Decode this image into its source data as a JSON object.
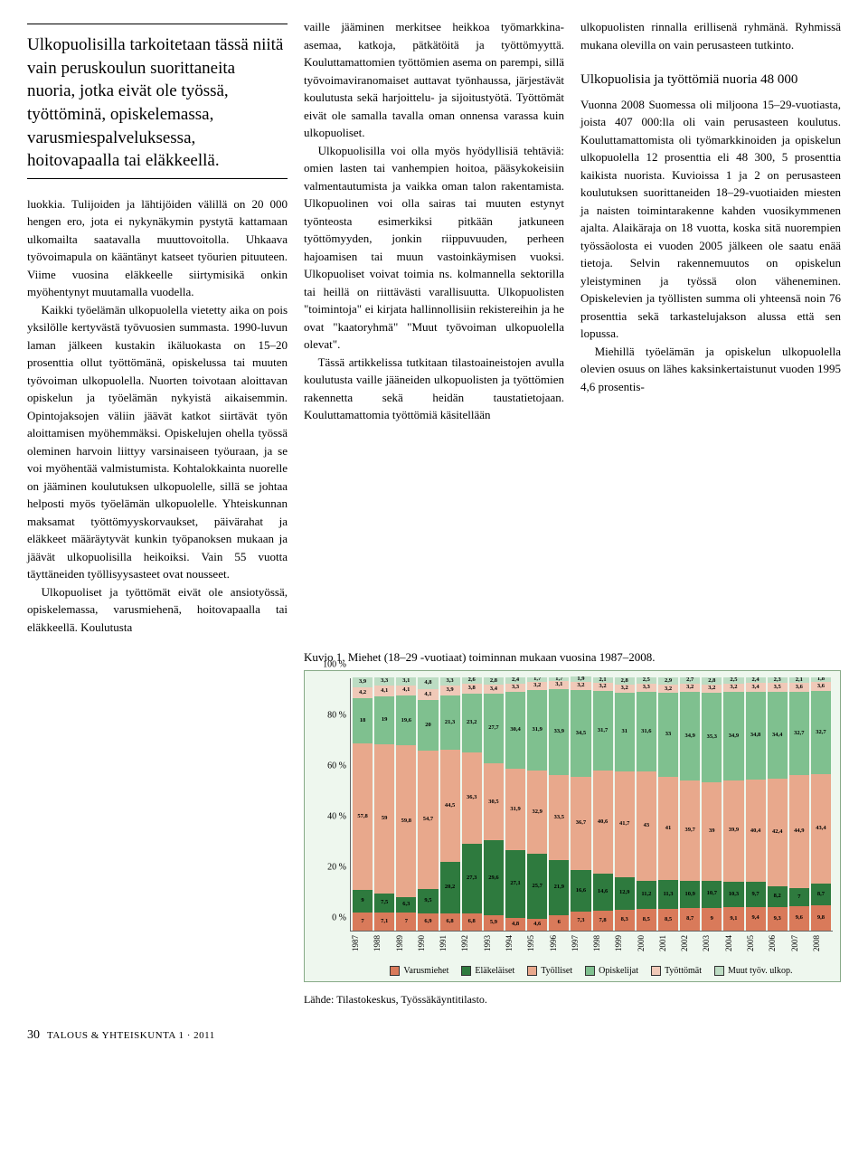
{
  "pullquote": "Ulkopuolisilla tarkoitetaan tässä niitä vain peruskoulun suorittaneita nuoria, jotka eivät ole työssä, työttöminä, opiskelemassa, varusmiespalveluksessa, hoitovapaalla tai eläkkeellä.",
  "col1": {
    "p1": "luokkia. Tulijoiden ja lähtijöiden välillä on 20 000 hengen ero, jota ei nykynäkymin pystytä kattamaan ulkomailta saatavalla muuttovoitolla. Uhkaava työvoimapula on kääntänyt katseet työurien pituuteen. Viime vuosina eläkkeelle siirtymisikä onkin myöhentynyt muutamalla vuodella.",
    "p2": "Kaikki työelämän ulkopuolella vietetty aika on pois yksilölle kertyvästä työvuosien summasta. 1990-luvun laman jälkeen kustakin ikäluokasta on 15–20 prosenttia ollut työttömänä, opiskelussa tai muuten työvoiman ulkopuolella. Nuorten toivotaan aloittavan opiskelun ja työelämän nykyistä aikaisemmin. Opintojaksojen väliin jäävät katkot siirtävät työn aloittamisen myöhemmäksi. Opiskelujen ohella työssä oleminen harvoin liittyy varsinaiseen työuraan, ja se voi myöhentää valmistumista. Kohtalokkainta nuorelle on jääminen koulutuksen ulkopuolelle, sillä se johtaa helposti myös työelämän ulkopuolelle. Yhteiskunnan maksamat työttömyyskorvaukset, päivärahat ja eläkkeet määräytyvät kunkin työpanoksen mukaan ja jäävät ulkopuolisilla heikoiksi. Vain 55 vuotta täyttäneiden työllisyysasteet ovat nousseet.",
    "p3": "Ulkopuoliset ja työttömät eivät ole ansiotyössä, opiskelemassa, varusmiehenä, hoitovapaalla tai eläkkeellä. Koulutusta"
  },
  "col2": {
    "p1": "vaille jääminen merkitsee heikkoa työmarkkina-asemaa, katkoja, pätkätöitä ja työttömyyttä. Kouluttamattomien työttömien asema on parempi, sillä työvoimaviranomaiset auttavat työnhaussa, järjestävät koulutusta sekä harjoittelu- ja sijoitustyötä. Työttömät eivät ole samalla tavalla oman onnensa varassa kuin ulkopuoliset.",
    "p2": "Ulkopuolisilla voi olla myös hyödyllisiä tehtäviä: omien lasten tai vanhempien hoitoa, pääsykokeisiin valmentautumista ja vaikka oman talon rakentamista. Ulkopuolinen voi olla sairas tai muuten estynyt työnteosta esimerkiksi pitkään jatkuneen työttömyyden, jonkin riippuvuuden, perheen hajoamisen tai muun vastoinkäymisen vuoksi. Ulkopuoliset voivat toimia ns. kolmannella sektorilla tai heillä on riittävästi varallisuutta. Ulkopuolisten \"toimintoja\" ei kirjata hallinnollisiin rekistereihin ja he ovat \"kaatoryhmä\" \"Muut työvoiman ulkopuolella olevat\".",
    "p3": "Tässä artikkelissa tutkitaan tilastoaineistojen avulla koulutusta vaille jääneiden ulkopuolisten ja työttömien rakennetta sekä heidän taustatietojaan. Kouluttamattomia työttömiä käsitellään"
  },
  "col3": {
    "p1": "ulkopuolisten rinnalla erillisenä ryhmänä. Ryhmissä mukana olevilla on vain perusasteen tutkinto.",
    "head": "Ulkopuolisia ja työttömiä nuoria 48 000",
    "p2": "Vuonna 2008 Suomessa oli miljoona 15–29-vuotiasta, joista 407 000:lla oli vain perusasteen koulutus. Kouluttamattomista oli työmarkkinoiden ja opiskelun ulkopuolella 12 prosenttia eli 48 300, 5 prosenttia kaikista nuorista. Kuvioissa 1 ja 2 on perusasteen koulutuksen suorittaneiden 18–29-vuotiaiden miesten ja naisten toimintarakenne kahden vuosikymmenen ajalta. Alaikäraja on 18 vuotta, koska sitä nuorempien työssäolosta ei vuoden 2005 jälkeen ole saatu enää tietoja. Selvin rakennemuutos on opiskelun yleistyminen ja työssä olon väheneminen. Opiskelevien ja työllisten summa oli yhteensä noin 76 prosenttia sekä tarkastelujakson alussa että sen lopussa.",
    "p3": "Miehillä työelämän ja opiskelun ulkopuolella olevien osuus on lähes kaksinkertaistunut vuoden 1995 4,6 prosentis-"
  },
  "chart": {
    "title": "Kuvio 1. Miehet (18–29 -vuotiaat) toiminnan mukaan vuosina 1987–2008.",
    "source": "Lähde: Tilastokeskus, Työssäkäyntitilasto.",
    "ylabel_pct": "%",
    "yticks": [
      0,
      20,
      40,
      60,
      80,
      100
    ],
    "background": "#eef7ee",
    "legend": [
      {
        "label": "Varusmiehet",
        "color": "#d97a5a"
      },
      {
        "label": "Eläkeläiset",
        "color": "#2e7a3e"
      },
      {
        "label": "Työlliset",
        "color": "#e8a88c"
      },
      {
        "label": "Opiskelijat",
        "color": "#7fc08f"
      },
      {
        "label": "Työttömät",
        "color": "#f0c9b8"
      },
      {
        "label": "Muut työv. ulkop.",
        "color": "#bcdcc3"
      }
    ],
    "series_order": [
      "varusmiehet",
      "elakelaiset",
      "tyolliset",
      "opiskelijat",
      "tyottomat",
      "muut"
    ],
    "colors": {
      "varusmiehet": "#d97a5a",
      "elakelaiset": "#2e7a3e",
      "tyolliset": "#e8a88c",
      "opiskelijat": "#7fc08f",
      "tyottomat": "#f0c9b8",
      "muut": "#bcdcc3"
    },
    "years": [
      "1987",
      "1988",
      "1989",
      "1990",
      "1991",
      "1992",
      "1993",
      "1994",
      "1995",
      "1996",
      "1997",
      "1998",
      "1999",
      "2000",
      "2001",
      "2002",
      "2003",
      "2004",
      "2005",
      "2006",
      "2007",
      "2008"
    ],
    "data": {
      "1987": {
        "varusmiehet": 7,
        "elakelaiset": 9,
        "tyolliset": 57.8,
        "opiskelijat": 18,
        "tyottomat": 4.2,
        "muut": 3.9
      },
      "1988": {
        "varusmiehet": 7.1,
        "elakelaiset": 7.5,
        "tyolliset": 59,
        "opiskelijat": 19,
        "tyottomat": 4.1,
        "muut": 3.3
      },
      "1989": {
        "varusmiehet": 7,
        "elakelaiset": 6.3,
        "tyolliset": 59.8,
        "opiskelijat": 19.6,
        "tyottomat": 4.1,
        "muut": 3.1
      },
      "1990": {
        "varusmiehet": 6.9,
        "elakelaiset": 9.5,
        "tyolliset": 54.7,
        "opiskelijat": 20,
        "tyottomat": 4.1,
        "muut": 4.8
      },
      "1991": {
        "varusmiehet": 6.8,
        "elakelaiset": 20.2,
        "tyolliset": 44.5,
        "opiskelijat": 21.3,
        "tyottomat": 3.9,
        "muut": 3.3
      },
      "1992": {
        "varusmiehet": 6.8,
        "elakelaiset": 27.3,
        "tyolliset": 36.3,
        "opiskelijat": 23.2,
        "tyottomat": 3.8,
        "muut": 2.6
      },
      "1993": {
        "varusmiehet": 5.9,
        "elakelaiset": 29.6,
        "tyolliset": 30.5,
        "opiskelijat": 27.7,
        "tyottomat": 3.4,
        "muut": 2.8
      },
      "1994": {
        "varusmiehet": 4.8,
        "elakelaiset": 27.1,
        "tyolliset": 31.9,
        "opiskelijat": 30.4,
        "tyottomat": 3.3,
        "muut": 2.4
      },
      "1995": {
        "varusmiehet": 4.6,
        "elakelaiset": 25.7,
        "tyolliset": 32.9,
        "opiskelijat": 31.9,
        "tyottomat": 3.2,
        "muut": 1.7
      },
      "1996": {
        "varusmiehet": 6,
        "elakelaiset": 21.9,
        "tyolliset": 33.5,
        "opiskelijat": 33.9,
        "tyottomat": 3.1,
        "muut": 1.7
      },
      "1997": {
        "varusmiehet": 7.3,
        "elakelaiset": 16.6,
        "tyolliset": 36.7,
        "opiskelijat": 34.5,
        "tyottomat": 3.2,
        "muut": 1.9
      },
      "1998": {
        "varusmiehet": 7.8,
        "elakelaiset": 14.6,
        "tyolliset": 40.6,
        "opiskelijat": 31.7,
        "tyottomat": 3.2,
        "muut": 2.1
      },
      "1999": {
        "varusmiehet": 8.3,
        "elakelaiset": 12.9,
        "tyolliset": 41.7,
        "opiskelijat": 31,
        "tyottomat": 3.2,
        "muut": 2.8
      },
      "2000": {
        "varusmiehet": 8.5,
        "elakelaiset": 11.2,
        "tyolliset": 43,
        "opiskelijat": 31.6,
        "tyottomat": 3.3,
        "muut": 2.5
      },
      "2001": {
        "varusmiehet": 8.5,
        "elakelaiset": 11.3,
        "tyolliset": 41,
        "opiskelijat": 33,
        "tyottomat": 3.2,
        "muut": 2.9
      },
      "2002": {
        "varusmiehet": 8.7,
        "elakelaiset": 10.9,
        "tyolliset": 39.7,
        "opiskelijat": 34.9,
        "tyottomat": 3.2,
        "muut": 2.7
      },
      "2003": {
        "varusmiehet": 9,
        "elakelaiset": 10.7,
        "tyolliset": 39,
        "opiskelijat": 35.3,
        "tyottomat": 3.2,
        "muut": 2.8
      },
      "2004": {
        "varusmiehet": 9.1,
        "elakelaiset": 10.3,
        "tyolliset": 39.9,
        "opiskelijat": 34.9,
        "tyottomat": 3.2,
        "muut": 2.5
      },
      "2005": {
        "varusmiehet": 9.4,
        "elakelaiset": 9.7,
        "tyolliset": 40.4,
        "opiskelijat": 34.8,
        "tyottomat": 3.4,
        "muut": 2.4
      },
      "2006": {
        "varusmiehet": 9.3,
        "elakelaiset": 8.2,
        "tyolliset": 42.4,
        "opiskelijat": 34.4,
        "tyottomat": 3.5,
        "muut": 2.3
      },
      "2007": {
        "varusmiehet": 9.6,
        "elakelaiset": 7,
        "tyolliset": 44.9,
        "opiskelijat": 32.7,
        "tyottomat": 3.6,
        "muut": 2.1
      },
      "2008": {
        "varusmiehet": 9.8,
        "elakelaiset": 8.7,
        "tyolliset": 43.4,
        "opiskelijat": 32.7,
        "tyottomat": 3.6,
        "muut": 1.8
      }
    }
  },
  "footer": {
    "page": "30",
    "pub": "TALOUS & YHTEISKUNTA 1 · 2011"
  }
}
